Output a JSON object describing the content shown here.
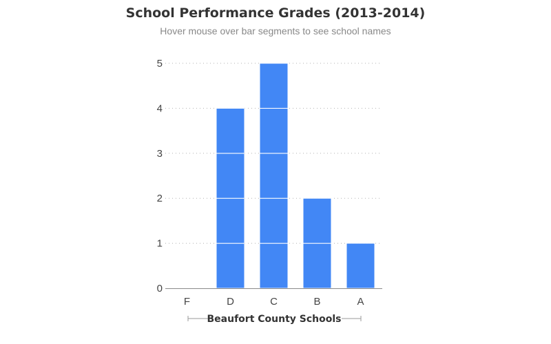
{
  "title": "School Performance Grades (2013-2014)",
  "subtitle": "Hover mouse over bar segments to see school names",
  "chart_data": {
    "type": "bar",
    "stacked": true,
    "categories": [
      "F",
      "D",
      "C",
      "B",
      "A"
    ],
    "values": [
      0,
      4,
      5,
      2,
      1
    ],
    "xlabel": "Beaufort County Schools",
    "ylabel": "",
    "ylim": [
      0,
      5
    ],
    "yticks": [
      0,
      1,
      2,
      3,
      4,
      5
    ],
    "grid": true,
    "bar_color": "#4287f5",
    "segment_note": "each bar is stacked from unit segments (one per school)"
  }
}
